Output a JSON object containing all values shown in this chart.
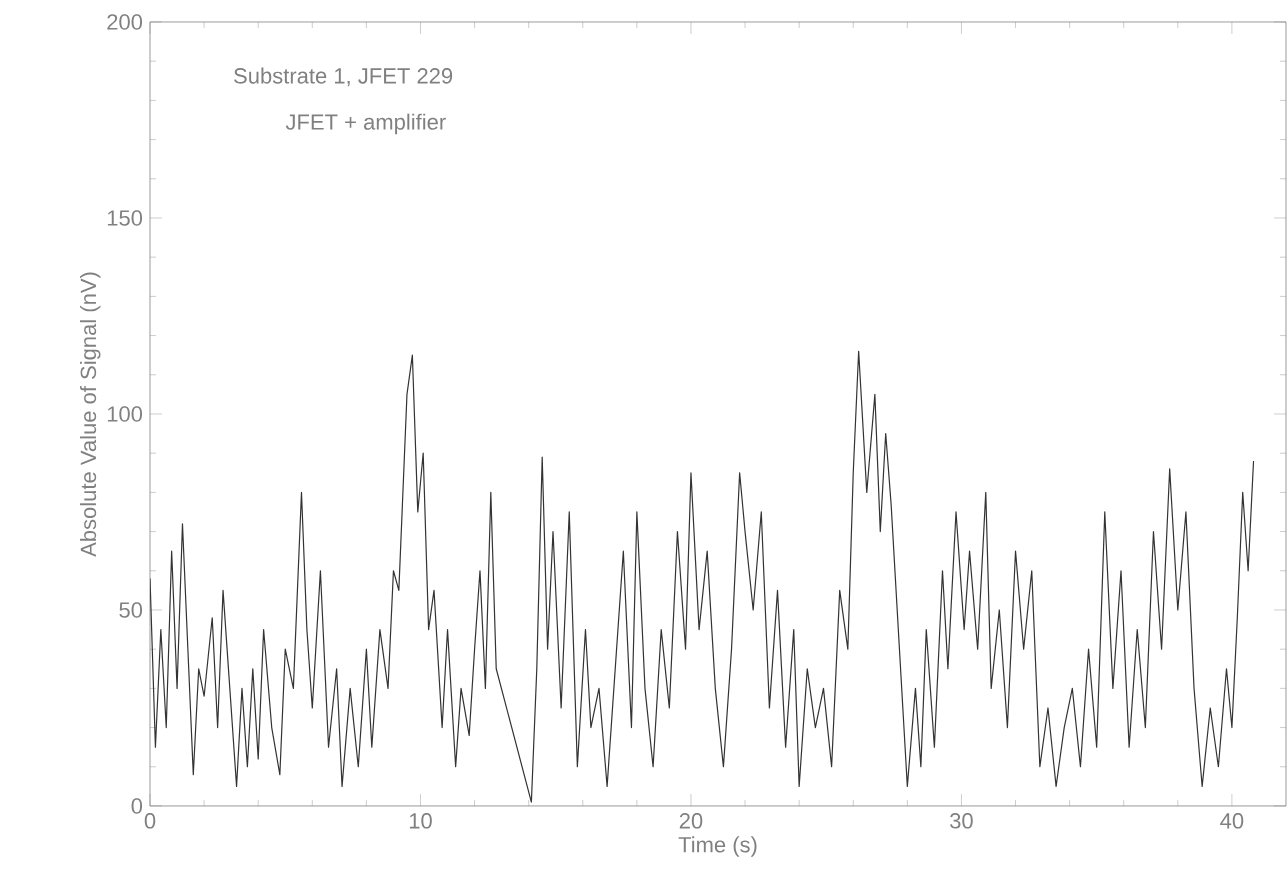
{
  "chart_data": {
    "type": "line",
    "xlabel": "Time (s)",
    "ylabel": "Absolute Value of Signal (nV)",
    "annotations": [
      "Substrate 1, JFET 229",
      "JFET + amplifier"
    ],
    "xlim": [
      0,
      42
    ],
    "xticks": [
      0,
      10,
      20,
      30,
      40
    ],
    "ylim": [
      0,
      200
    ],
    "yticks": [
      0,
      50,
      100,
      150,
      200
    ],
    "marker": "none",
    "line_style": "solid",
    "series": [
      {
        "color": "#333333",
        "x": [
          0.0,
          0.2,
          0.4,
          0.6,
          0.8,
          1.0,
          1.2,
          1.4,
          1.6,
          1.8,
          2.0,
          2.3,
          2.5,
          2.7,
          3.0,
          3.2,
          3.4,
          3.6,
          3.8,
          4.0,
          4.2,
          4.5,
          4.8,
          5.0,
          5.3,
          5.6,
          5.8,
          6.0,
          6.3,
          6.6,
          6.9,
          7.1,
          7.4,
          7.7,
          8.0,
          8.2,
          8.5,
          8.8,
          9.0,
          9.2,
          9.5,
          9.7,
          9.9,
          10.1,
          10.3,
          10.5,
          10.8,
          11.0,
          11.3,
          11.5,
          11.8,
          12.0,
          12.2,
          12.4,
          12.6,
          12.8,
          14.1,
          14.3,
          14.5,
          14.7,
          14.9,
          15.2,
          15.5,
          15.8,
          16.1,
          16.3,
          16.6,
          16.9,
          17.2,
          17.5,
          17.8,
          18.0,
          18.3,
          18.6,
          18.9,
          19.2,
          19.5,
          19.8,
          20.0,
          20.3,
          20.6,
          20.9,
          21.2,
          21.5,
          21.8,
          22.0,
          22.3,
          22.6,
          22.9,
          23.2,
          23.5,
          23.8,
          24.0,
          24.3,
          24.6,
          24.9,
          25.2,
          25.5,
          25.8,
          26.0,
          26.2,
          26.5,
          26.8,
          27.0,
          27.2,
          27.4,
          28.0,
          28.3,
          28.5,
          28.7,
          29.0,
          29.3,
          29.5,
          29.8,
          30.1,
          30.3,
          30.6,
          30.9,
          31.1,
          31.4,
          31.7,
          32.0,
          32.3,
          32.6,
          32.9,
          33.2,
          33.5,
          33.8,
          34.1,
          34.4,
          34.7,
          35.0,
          35.3,
          35.6,
          35.9,
          36.2,
          36.5,
          36.8,
          37.1,
          37.4,
          37.7,
          38.0,
          38.3,
          38.6,
          38.9,
          39.2,
          39.5,
          39.8,
          40.0,
          40.2,
          40.4,
          40.6,
          40.8
        ],
        "values": [
          58,
          15,
          45,
          20,
          65,
          30,
          72,
          40,
          8,
          35,
          28,
          48,
          20,
          55,
          25,
          5,
          30,
          10,
          35,
          12,
          45,
          20,
          8,
          40,
          30,
          80,
          45,
          25,
          60,
          15,
          35,
          5,
          30,
          10,
          40,
          15,
          45,
          30,
          60,
          55,
          105,
          115,
          75,
          90,
          45,
          55,
          20,
          45,
          10,
          30,
          18,
          40,
          60,
          30,
          80,
          35,
          1,
          35,
          89,
          40,
          70,
          25,
          75,
          10,
          45,
          20,
          30,
          5,
          35,
          65,
          20,
          75,
          30,
          10,
          45,
          25,
          70,
          40,
          85,
          45,
          65,
          30,
          10,
          40,
          85,
          70,
          50,
          75,
          25,
          55,
          15,
          45,
          5,
          35,
          20,
          30,
          10,
          55,
          40,
          85,
          116,
          80,
          105,
          70,
          95,
          77,
          5,
          30,
          10,
          45,
          15,
          60,
          35,
          75,
          45,
          65,
          40,
          80,
          30,
          50,
          20,
          65,
          40,
          60,
          10,
          25,
          5,
          20,
          30,
          10,
          40,
          15,
          75,
          30,
          60,
          15,
          45,
          20,
          70,
          40,
          86,
          50,
          75,
          30,
          5,
          25,
          10,
          35,
          20,
          48,
          80,
          60,
          88
        ]
      }
    ]
  }
}
